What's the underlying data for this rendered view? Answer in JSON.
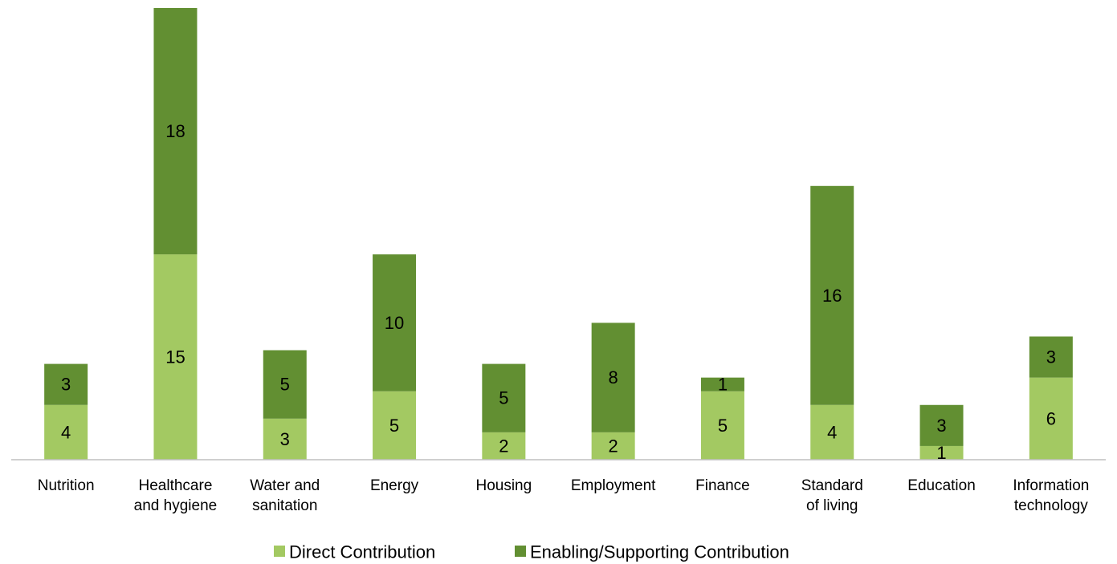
{
  "chart_data": {
    "type": "bar",
    "stacked": true,
    "categories": [
      [
        "Nutrition"
      ],
      [
        "Healthcare",
        "and hygiene"
      ],
      [
        "Water and",
        "sanitation"
      ],
      [
        "Energy"
      ],
      [
        "Housing"
      ],
      [
        "Employment"
      ],
      [
        "Finance"
      ],
      [
        "Standard",
        "of living"
      ],
      [
        "Education"
      ],
      [
        "Information",
        "technology"
      ]
    ],
    "series": [
      {
        "name": "Direct Contribution",
        "color": "#A3C962",
        "values": [
          4,
          15,
          3,
          5,
          2,
          2,
          5,
          4,
          1,
          6
        ]
      },
      {
        "name": "Enabling/Supporting Contribution",
        "color": "#628F32",
        "values": [
          3,
          18,
          5,
          10,
          5,
          8,
          1,
          16,
          3,
          3
        ]
      }
    ],
    "title": "",
    "xlabel": "",
    "ylabel": "",
    "ylim": [
      0,
      33
    ],
    "grid": false,
    "legend_position": "bottom",
    "show_y_axis": false
  }
}
